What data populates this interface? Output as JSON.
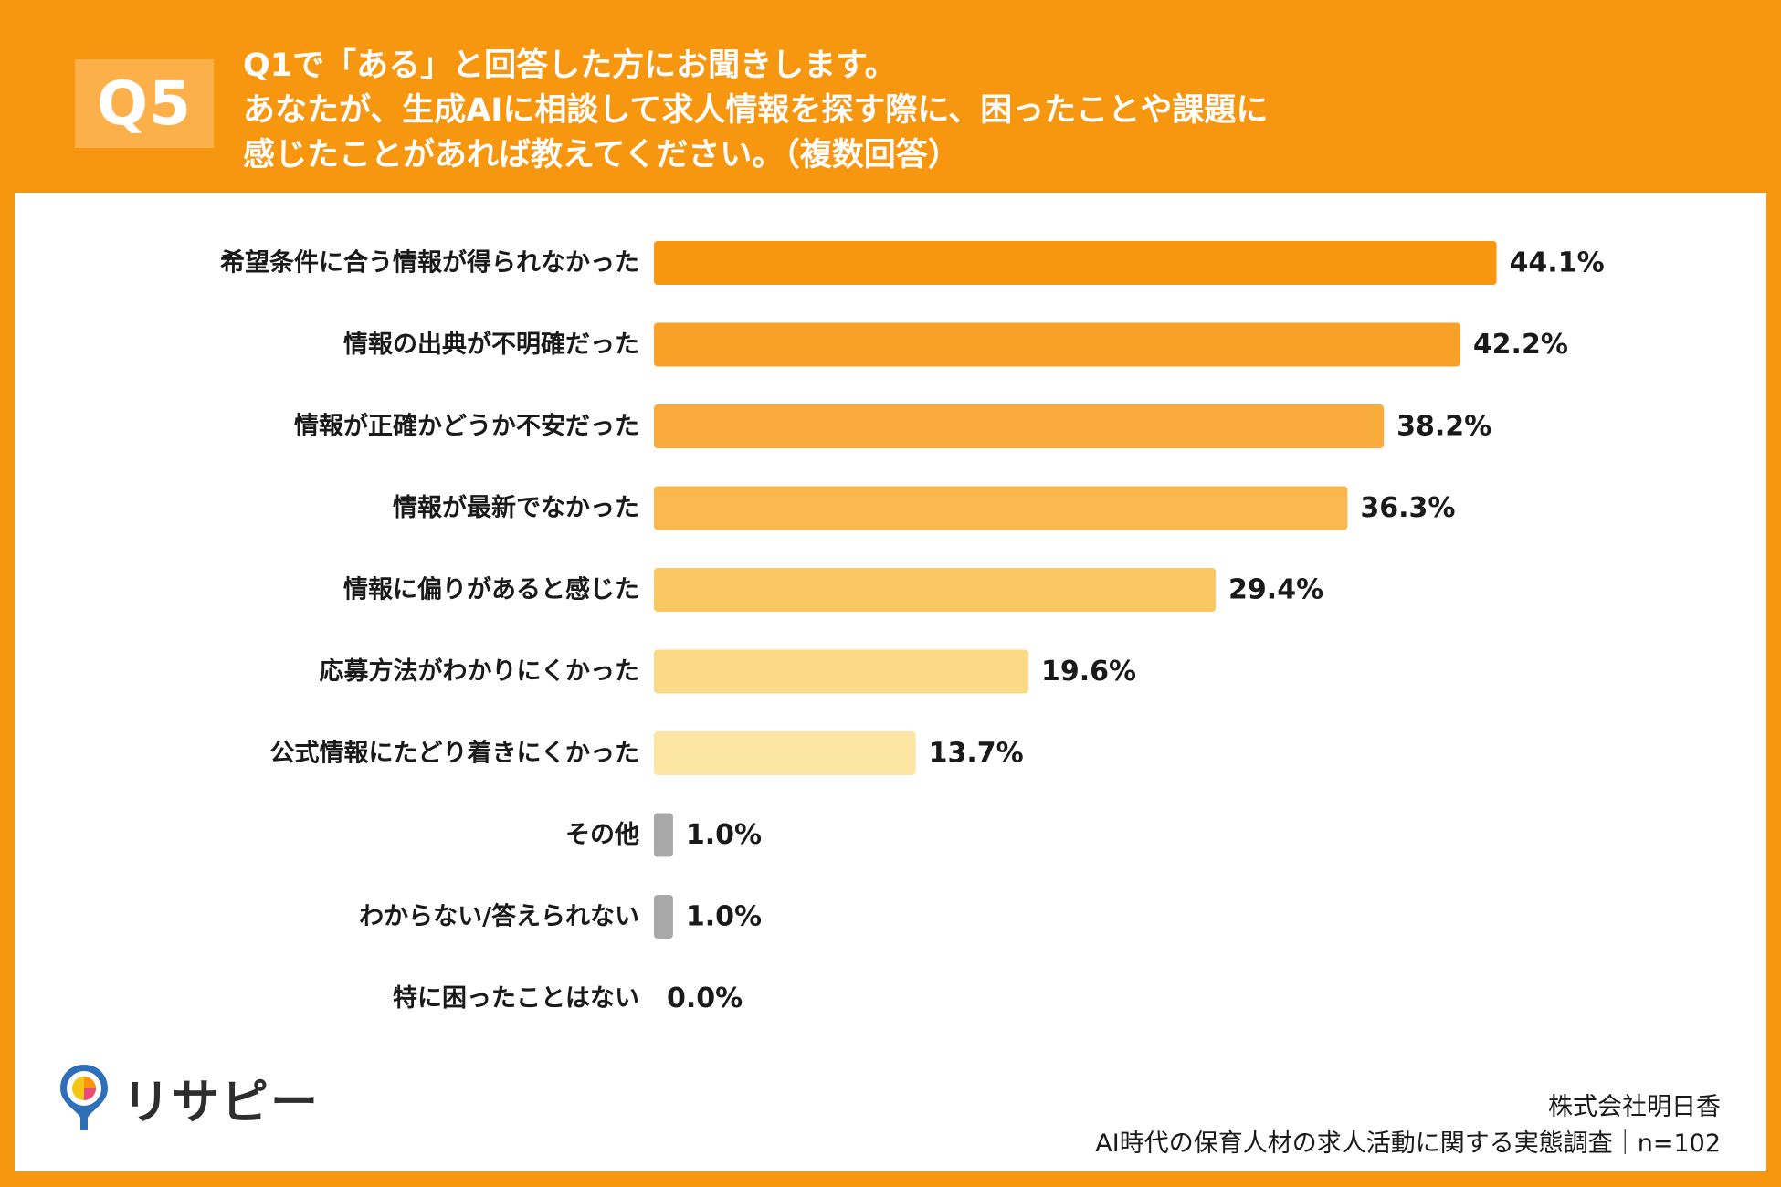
{
  "header": {
    "badge": "Q5",
    "question_lines": [
      "Q1で「ある」と回答した方にお聞きします。",
      "あなたが、生成AIに相談して求人情報を探す際に、困ったことや課題に",
      "感じたことがあれば教えてください。（複数回答）"
    ]
  },
  "chart_data": {
    "type": "bar",
    "orientation": "horizontal",
    "categories": [
      "希望条件に合う情報が得られなかった",
      "情報の出典が不明確だった",
      "情報が正確かどうか不安だった",
      "情報が最新でなかった",
      "情報に偏りがあると感じた",
      "応募方法がわかりにくかった",
      "公式情報にたどり着きにくかった",
      "その他",
      "わからない/答えられない",
      "特に困ったことはない"
    ],
    "values": [
      44.1,
      42.2,
      38.2,
      36.3,
      29.4,
      19.6,
      13.7,
      1.0,
      1.0,
      0.0
    ],
    "value_labels": [
      "44.1%",
      "42.2%",
      "38.2%",
      "36.3%",
      "29.4%",
      "19.6%",
      "13.7%",
      "1.0%",
      "1.0%",
      "0.0%"
    ],
    "bar_colors": [
      "#F7960F",
      "#F8A126",
      "#F9AC3B",
      "#FAB84E",
      "#FBC763",
      "#FCD987",
      "#FDE6A3",
      "#A8A8A8",
      "#A8A8A8",
      "#A8A8A8"
    ],
    "unit": "%",
    "xlim": [
      0,
      50
    ],
    "grid": false
  },
  "brand": {
    "logo_text": "リサピー"
  },
  "footer": {
    "company": "株式会社明日香",
    "survey": "AI時代の保育人材の求人活動に関する実態調査｜n=102"
  }
}
